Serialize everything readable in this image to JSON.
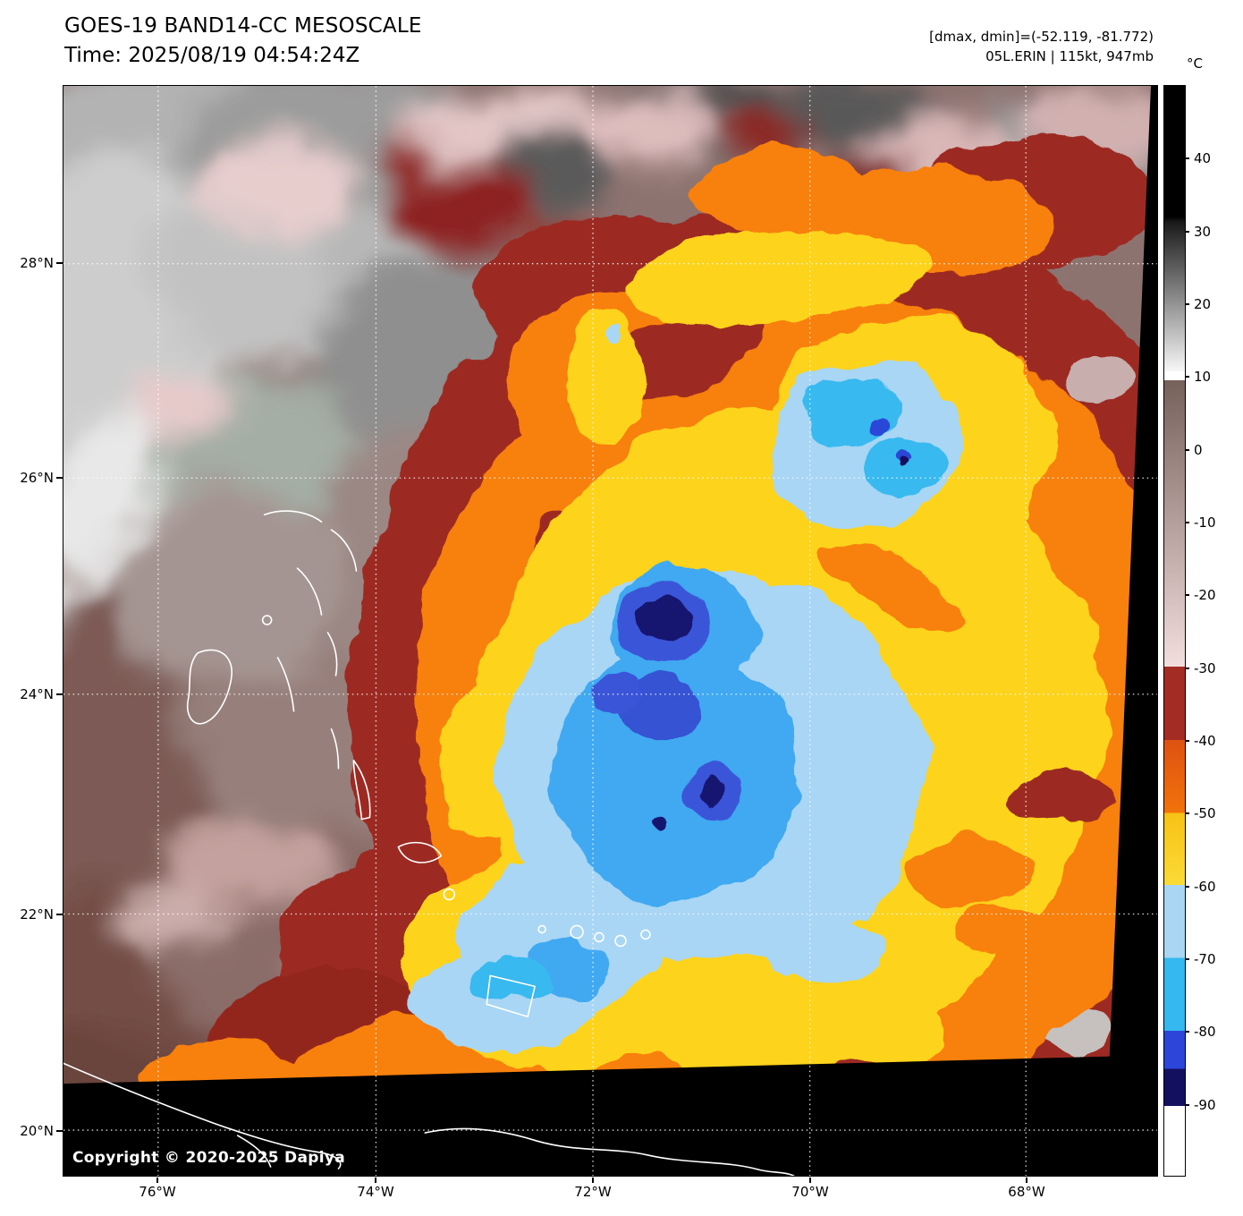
{
  "header": {
    "title": "GOES-19 BAND14-CC MESOSCALE",
    "time_label": "Time: 2025/08/19 04:54:24Z",
    "range_label": "[dmax, dmin]=(-52.119, -81.772)",
    "storm_label": "05L.ERIN | 115kt, 947mb"
  },
  "map": {
    "lat_labels": [
      "28°N",
      "26°N",
      "24°N",
      "22°N",
      "20°N"
    ],
    "lon_labels": [
      "76°W",
      "74°W",
      "72°W",
      "70°W",
      "68°W"
    ],
    "copyright": "Copyright © 2020-2025 Dapiya"
  },
  "colorbar": {
    "unit": "°C",
    "domain_c": [
      50,
      -100
    ],
    "tick_values": [
      40,
      30,
      20,
      10,
      0,
      -10,
      -20,
      -30,
      -40,
      -50,
      -60,
      -70,
      -80,
      -90
    ],
    "gradient": "linear-gradient(to bottom, #000000 0%, #000000 12%, #1a1a1a 12.5%, #f7f7f7 26.2%, #ffffff 26.2%, #ffffff 27%, #76605a 27%, #f3dede 53.3%, #a32c24 53.3%, #a32c24 60%, #dd5212 60%, #f2720a 66.7%, #f7c216 66.7%, #fbda35 73.3%, #a9d7f3 73.3%, #a9d7f3 80%, #35b7ef 80%, #35b7ef 86.7%, #2b46d8 86.7%, #2b46d8 90.2%, #131060 90.2%, #131060 93.6%, #ffffff 93.6%, #ffffff 100%)",
    "bands": [
      {
        "range_c": ">= 30",
        "color": "#000000"
      },
      {
        "range_c": "30 to 10",
        "color_ramp": [
          "#1a1a1a",
          "#ffffff"
        ]
      },
      {
        "range_c": "10 to -30",
        "color_ramp": [
          "#76605a",
          "#f3dede"
        ]
      },
      {
        "range_c": "-30 to -40",
        "color": "#a32c24"
      },
      {
        "range_c": "-40 to -50",
        "color": "#e9620e"
      },
      {
        "range_c": "-50 to -60",
        "color": "#f9ce25"
      },
      {
        "range_c": "-60 to -70",
        "color": "#a9d7f3"
      },
      {
        "range_c": "-70 to -80",
        "color": "#35b7ef"
      },
      {
        "range_c": "-80 to -85",
        "color": "#2b46d8"
      },
      {
        "range_c": "-85 to -90",
        "color": "#131060"
      },
      {
        "range_c": "< -90",
        "color": "#ffffff"
      }
    ]
  },
  "scene_palette": {
    "warm_background": "#8d7370",
    "cold_dark_red": "#9c2a22",
    "orange": "#f8800a",
    "yellow": "#fdd31d",
    "light_blue": "#a9d6f4",
    "mid_blue": "#3fa9f1",
    "cyan": "#39b9ef",
    "royal_blue": "#3b55d8",
    "navy": "#161270",
    "scan_edge": "#000000",
    "graticule": "#ffffff",
    "coastline": "#ffffff"
  }
}
